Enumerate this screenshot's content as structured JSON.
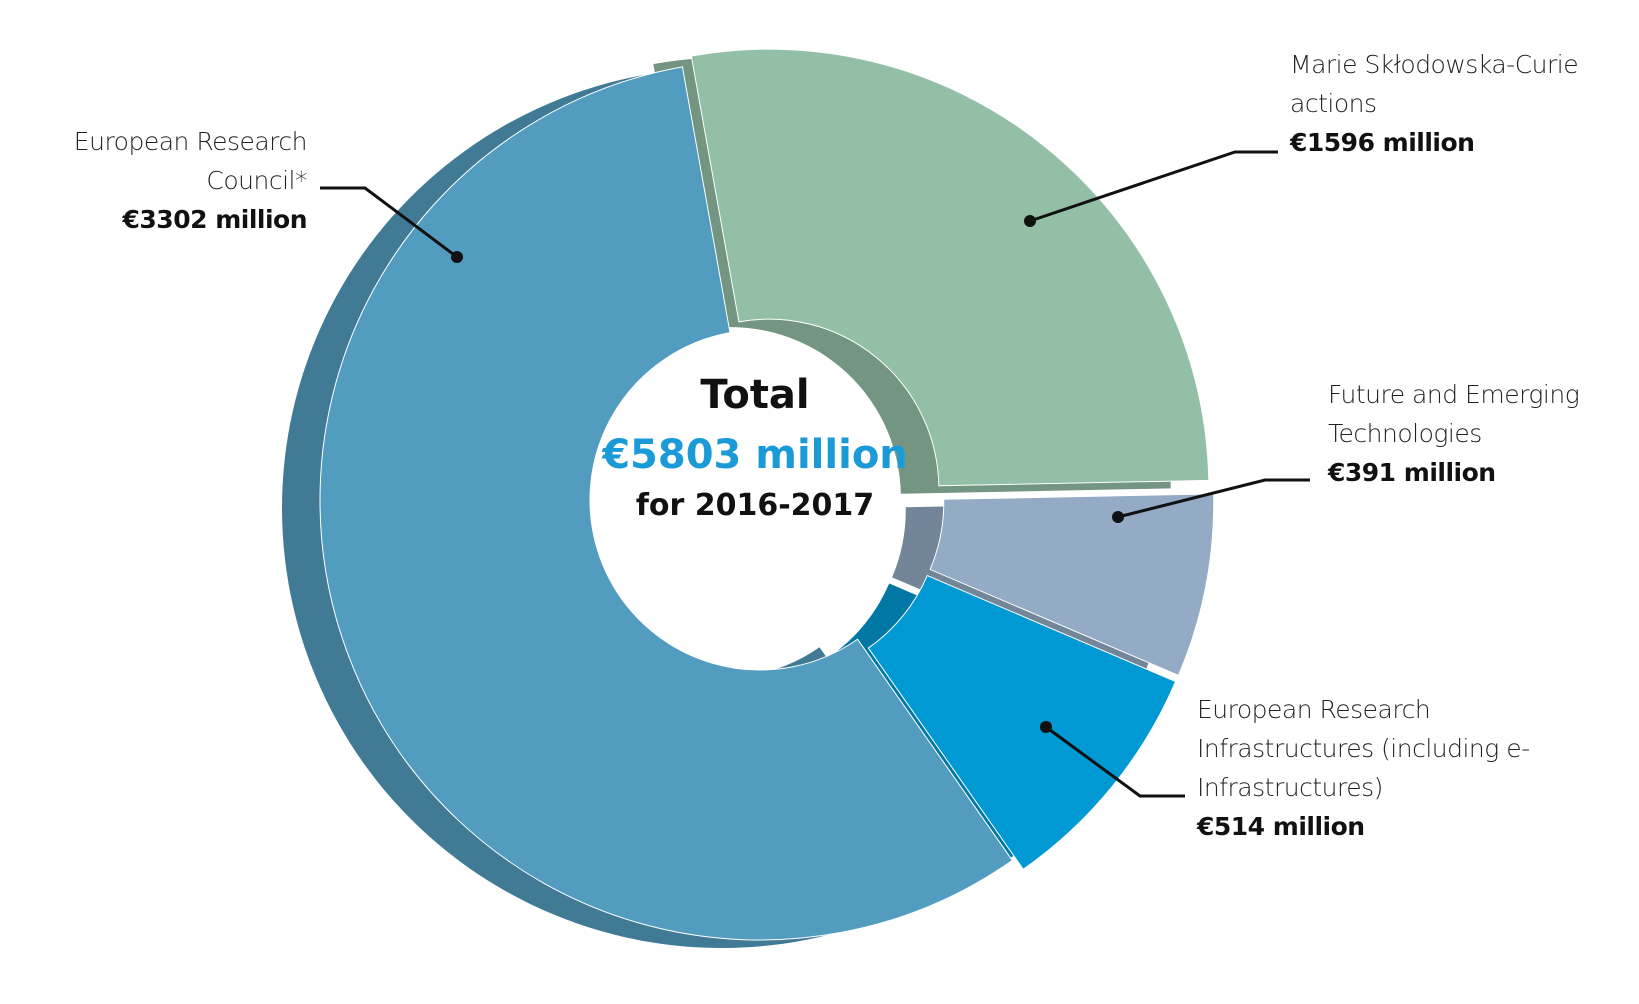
{
  "chart_data": {
    "type": "pie",
    "donut": true,
    "categories": [
      "European Research Council*",
      "Marie Skłodowska-Curie actions",
      "Future and Emerging Technologies",
      "European Research Infrastructures (including e-Infrastructures)"
    ],
    "values": [
      3302,
      1596,
      391,
      514
    ],
    "value_labels": [
      "€3302 million",
      "€1596 million",
      "€391 million",
      "€514 million"
    ],
    "colors": [
      "#529dbf",
      "#93bfa6",
      "#93abc4",
      "#0099d4"
    ],
    "center_title": "Total",
    "center_value": "€5803 million",
    "center_subtitle": "for 2016-2017"
  }
}
